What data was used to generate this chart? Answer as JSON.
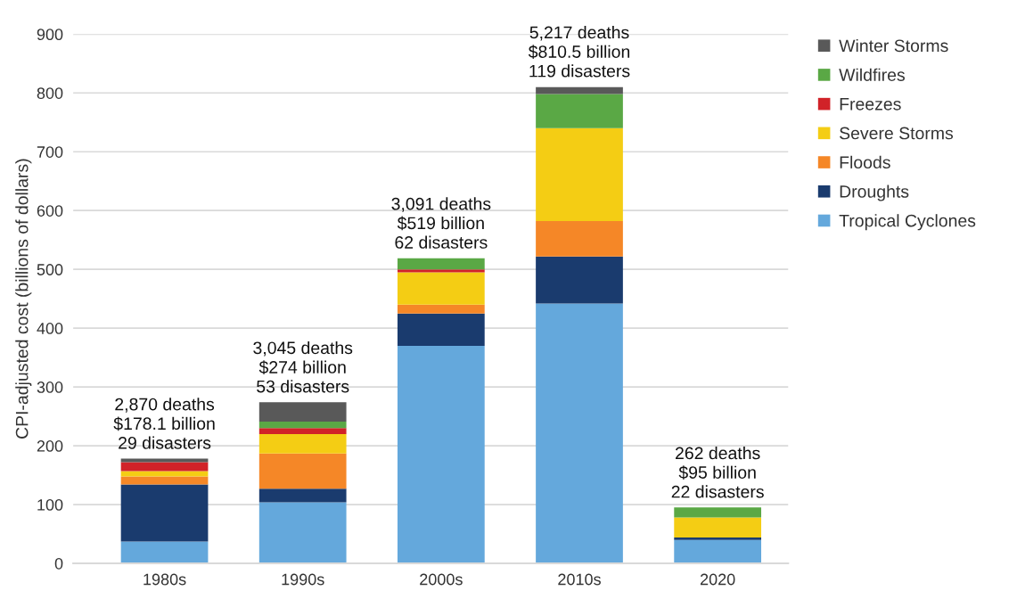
{
  "chart_data": {
    "type": "bar",
    "stacked": true,
    "ylabel": "CPI-adjusted cost (billions of dollars)",
    "categories": [
      "1980s",
      "1990s",
      "2000s",
      "2010s",
      "2020"
    ],
    "series": [
      {
        "name": "Tropical Cyclones",
        "color": "#64a8dc",
        "values": [
          37,
          104,
          370,
          442,
          40
        ]
      },
      {
        "name": "Droughts",
        "color": "#1a3b6e",
        "values": [
          97,
          23,
          55,
          80,
          4
        ]
      },
      {
        "name": "Floods",
        "color": "#f58727",
        "values": [
          14,
          60,
          15,
          60,
          0
        ]
      },
      {
        "name": "Severe Storms",
        "color": "#f4cd14",
        "values": [
          9,
          33,
          55,
          158,
          34
        ]
      },
      {
        "name": "Freezes",
        "color": "#d12228",
        "values": [
          15,
          10,
          5,
          0,
          0
        ]
      },
      {
        "name": "Wildfires",
        "color": "#5aa845",
        "values": [
          0,
          11,
          19,
          58,
          17
        ]
      },
      {
        "name": "Winter Storms",
        "color": "#595959",
        "values": [
          6,
          33,
          0,
          12,
          0
        ]
      }
    ],
    "ylim": [
      0,
      900
    ],
    "yticks": [
      0,
      100,
      200,
      300,
      400,
      500,
      600,
      700,
      800,
      900
    ],
    "grid": "y",
    "legend": "right",
    "annotations": [
      {
        "text": "2,870 deaths\n$178.1 billion\n29 disasters",
        "x": "1980s",
        "y": 178.1
      },
      {
        "text": "3,045 deaths\n$274 billion\n53 disasters",
        "x": "1990s",
        "y": 274
      },
      {
        "text": "3,091 deaths\n$519 billion\n62 disasters",
        "x": "2000s",
        "y": 519
      },
      {
        "text": "5,217 deaths\n$810.5 billion\n119 disasters",
        "x": "2010s",
        "y": 810.5
      },
      {
        "text": "262 deaths\n$95 billion\n22 disasters",
        "x": "2020",
        "y": 95
      }
    ]
  }
}
